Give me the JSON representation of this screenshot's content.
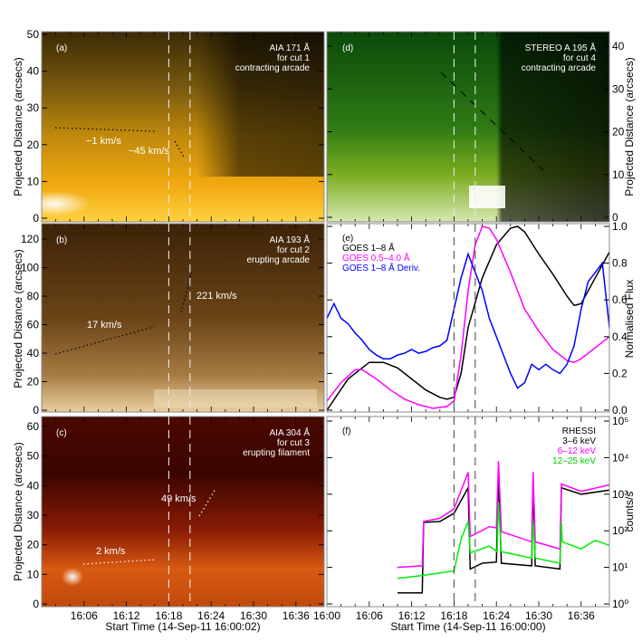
{
  "chart_data": [
    {
      "type": "heatmap",
      "panel": "(a)",
      "annotation": [
        "AIA 171 Å",
        "for cut 1",
        "contracting arcade"
      ],
      "velocities": [
        "−1 km/s",
        "−45 km/s"
      ],
      "ylabel": "Projected Distance (arcsecs)",
      "ylim": [
        0,
        50
      ],
      "yticks": [
        "0",
        "10",
        "20",
        "30",
        "40",
        "50"
      ],
      "colormap": [
        "#1a1205",
        "#6b4a08",
        "#d99a0a",
        "#ffc21a",
        "#fff6e0"
      ]
    },
    {
      "type": "heatmap",
      "panel": "(b)",
      "annotation": [
        "AIA 193 Å",
        "for cut 2",
        "erupting arcade"
      ],
      "velocities": [
        "17 km/s",
        "221 km/s"
      ],
      "ylabel": "Projected Distance (arcsecs)",
      "ylim": [
        0,
        130
      ],
      "yticks": [
        "0",
        "20",
        "40",
        "60",
        "80",
        "100",
        "120"
      ],
      "colormap": [
        "#3a2008",
        "#5e3a12",
        "#9a6a32",
        "#d4b07a",
        "#fbf2e0"
      ]
    },
    {
      "type": "heatmap",
      "panel": "(c)",
      "annotation": [
        "AIA 304 Å",
        "for cut 3",
        "erupting filament"
      ],
      "velocities": [
        "2 km/s",
        "49 km/s"
      ],
      "ylabel": "Projected Distance (arcsecs)",
      "xlabel": "Start Time (14-Sep-11 16:00:02)",
      "xticks": [
        "16:06",
        "16:12",
        "16:18",
        "16:24",
        "16:30",
        "16:36"
      ],
      "ylim": [
        0,
        63
      ],
      "yticks": [
        "0",
        "10",
        "20",
        "30",
        "40",
        "50",
        "60"
      ],
      "colormap": [
        "#2a0000",
        "#6e0c02",
        "#b53a08",
        "#f07a1e",
        "#fff0d0"
      ]
    },
    {
      "type": "heatmap",
      "panel": "(d)",
      "annotation": [
        "STEREO A 195 Å",
        "for cut 4",
        "contracting arcade"
      ],
      "ylabel": "Projected Distance (arcsecs)",
      "ylim": [
        0,
        44
      ],
      "yticks": [
        "0",
        "10",
        "20",
        "30",
        "40"
      ],
      "colormap": [
        "#001a00",
        "#0a5a0a",
        "#3a8a1a",
        "#8ab82a",
        "#ffffff"
      ]
    },
    {
      "type": "line",
      "panel": "(e)",
      "ylabel": "Normalised Flux",
      "ylim": [
        0,
        1
      ],
      "yticks": [
        "0.0",
        "0.2",
        "0.4",
        "0.6",
        "0.8",
        "1.0"
      ],
      "series": [
        {
          "name": "GOES 1–8 Å",
          "color": "#000000",
          "x": [
            "16:00",
            "16:03",
            "16:06",
            "16:08",
            "16:10",
            "16:12",
            "16:14",
            "16:16",
            "16:17",
            "16:18",
            "16:19",
            "16:20",
            "16:22",
            "16:24",
            "16:26",
            "16:27",
            "16:28",
            "16:30",
            "16:32",
            "16:34",
            "16:35",
            "16:36",
            "16:38",
            "16:40"
          ],
          "y": [
            0.0,
            0.17,
            0.26,
            0.26,
            0.23,
            0.17,
            0.11,
            0.07,
            0.06,
            0.07,
            0.2,
            0.45,
            0.72,
            0.9,
            0.99,
            1.0,
            0.97,
            0.85,
            0.74,
            0.62,
            0.57,
            0.58,
            0.72,
            0.86
          ]
        },
        {
          "name": "GOES 0.5–4.0 Å",
          "color": "#ff00ff",
          "x": [
            "16:00",
            "16:02",
            "16:04",
            "16:05",
            "16:07",
            "16:09",
            "16:11",
            "16:13",
            "16:15",
            "16:17",
            "16:18",
            "16:19",
            "16:20",
            "16:21",
            "16:22",
            "16:23",
            "16:24",
            "16:26",
            "16:28",
            "16:30",
            "16:32",
            "16:34",
            "16:35",
            "16:36",
            "16:38",
            "16:40"
          ],
          "y": [
            0.05,
            0.15,
            0.22,
            0.22,
            0.17,
            0.11,
            0.06,
            0.03,
            0.01,
            0.02,
            0.05,
            0.3,
            0.65,
            0.9,
            1.0,
            0.99,
            0.93,
            0.75,
            0.55,
            0.43,
            0.33,
            0.27,
            0.26,
            0.28,
            0.34,
            0.4
          ]
        },
        {
          "name": "GOES 1–8 Å Deriv.",
          "color": "#0000ff",
          "x": [
            "16:00",
            "16:01",
            "16:02",
            "16:03",
            "16:04",
            "16:05",
            "16:06",
            "16:07",
            "16:08",
            "16:09",
            "16:10",
            "16:11",
            "16:12",
            "16:13",
            "16:14",
            "16:15",
            "16:16",
            "16:17",
            "16:18",
            "16:19",
            "16:20",
            "16:21",
            "16:22",
            "16:23",
            "16:24",
            "16:25",
            "16:26",
            "16:27",
            "16:28",
            "16:29",
            "16:30",
            "16:31",
            "16:32",
            "16:33",
            "16:34",
            "16:35",
            "16:36",
            "16:37",
            "16:38",
            "16:39",
            "16:40"
          ],
          "y": [
            0.5,
            0.58,
            0.5,
            0.47,
            0.42,
            0.38,
            0.33,
            0.3,
            0.28,
            0.28,
            0.3,
            0.31,
            0.33,
            0.31,
            0.32,
            0.34,
            0.35,
            0.38,
            0.55,
            0.72,
            0.85,
            0.75,
            0.65,
            0.5,
            0.4,
            0.3,
            0.2,
            0.12,
            0.15,
            0.25,
            0.22,
            0.25,
            0.22,
            0.2,
            0.25,
            0.35,
            0.55,
            0.7,
            0.75,
            0.8,
            0.45
          ]
        }
      ]
    },
    {
      "type": "line",
      "panel": "(f)",
      "title": "RHESSI",
      "ylabel": "counts/s",
      "xlabel": "Start Time (14-Sep-11 16:00:00)",
      "xticks": [
        "16:00",
        "16:06",
        "16:12",
        "16:18",
        "16:24",
        "16:30",
        "16:36"
      ],
      "yscale": "log",
      "ylim": [
        1,
        100000
      ],
      "yticks": [
        "10⁰",
        "10¹",
        "10²",
        "10³",
        "10⁴",
        "10⁵"
      ],
      "series": [
        {
          "name": "3–6 keV",
          "color": "#000000",
          "x": [
            "16:10:00",
            "16:13:30",
            "16:13:42",
            "16:16:00",
            "16:18:00",
            "16:20:00",
            "16:20:18",
            "16:22:00",
            "16:24:00",
            "16:24:18",
            "16:24:42",
            "16:29:00",
            "16:29:12",
            "16:29:30",
            "16:33:00",
            "16:33:12",
            "16:36:00",
            "16:40:00"
          ],
          "y": [
            2,
            2,
            170,
            180,
            300,
            1500,
            9,
            13,
            14,
            4000,
            13,
            11,
            2800,
            11,
            9,
            1500,
            1000,
            1300
          ]
        },
        {
          "name": "6–12 keV",
          "color": "#ff00ff",
          "x": [
            "16:10:00",
            "16:13:30",
            "16:13:42",
            "16:16:00",
            "16:18:00",
            "16:20:00",
            "16:20:18",
            "16:23:00",
            "16:24:00",
            "16:24:18",
            "16:24:42",
            "16:29:00",
            "16:29:12",
            "16:29:30",
            "16:33:00",
            "16:33:12",
            "16:36:00",
            "16:40:00"
          ],
          "y": [
            10,
            11,
            180,
            220,
            400,
            4000,
            70,
            130,
            120,
            8000,
            95,
            50,
            4000,
            50,
            32,
            1900,
            1200,
            1800
          ]
        },
        {
          "name": "12–25 keV",
          "color": "#00ee00",
          "x": [
            "16:10:00",
            "16:13:30",
            "16:18:00",
            "16:19:00",
            "16:20:00",
            "16:20:18",
            "16:23:00",
            "16:24:06",
            "16:24:18",
            "16:24:42",
            "16:29:00",
            "16:29:12",
            "16:29:30",
            "16:33:00",
            "16:33:12",
            "16:33:20",
            "16:36:00",
            "16:38:00",
            "16:40:00"
          ],
          "y": [
            5,
            6,
            8,
            60,
            180,
            25,
            38,
            27,
            600,
            27,
            18,
            180,
            18,
            13,
            170,
            50,
            32,
            55,
            40
          ]
        }
      ]
    }
  ],
  "markers": {
    "event_times": [
      "16:18",
      "16:21"
    ]
  }
}
